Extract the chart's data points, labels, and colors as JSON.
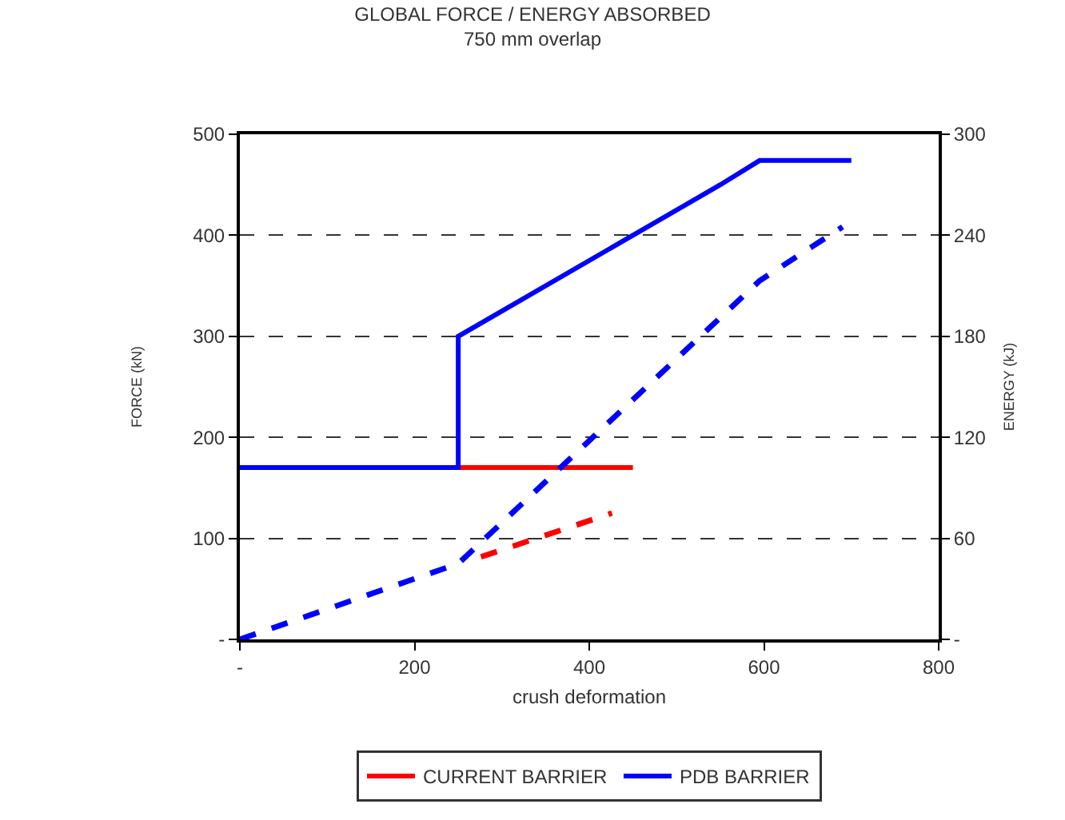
{
  "chart_data": {
    "type": "line",
    "title": "GLOBAL FORCE / ENERGY ABSORBED",
    "subtitle": "750 mm overlap",
    "xlabel": "crush deformation",
    "ylabel": "FORCE (kN)",
    "y2label": "ENERGY (kJ)",
    "xlim": [
      0,
      800
    ],
    "xticks": [
      {
        "value": 0,
        "label": "-"
      },
      200,
      400,
      600,
      800
    ],
    "ylim": [
      0,
      500
    ],
    "yticks": [
      {
        "value": 0,
        "label": "-"
      },
      100,
      200,
      300,
      400,
      500
    ],
    "y2lim": [
      0,
      300
    ],
    "y2ticks": [
      {
        "value": 0,
        "label": "-"
      },
      60,
      120,
      180,
      240,
      300
    ],
    "grid": "y",
    "legend": "bottom",
    "marker": "none",
    "series": [
      {
        "name": "CURRENT BARRIER",
        "color": "#ff0000",
        "x": [
          250,
          450
        ],
        "values": [
          170,
          170
        ],
        "line_style": "solid"
      },
      {
        "name": "PDB BARRIER",
        "color": "#0000ff",
        "x": [
          0,
          250,
          250,
          550,
          595,
          700
        ],
        "values": [
          170,
          170,
          300,
          450,
          474,
          474
        ],
        "line_style": "solid"
      },
      {
        "color": "#ff0000",
        "x": [
          276,
          426
        ],
        "values": [
          49,
          75
        ],
        "line_style": "dashed",
        "axis": "y2"
      },
      {
        "color": "#0000ff",
        "x": [
          0,
          250,
          595,
          690
        ],
        "values": [
          0,
          45,
          213,
          245
        ],
        "line_style": "dashed",
        "axis": "y2"
      }
    ]
  }
}
